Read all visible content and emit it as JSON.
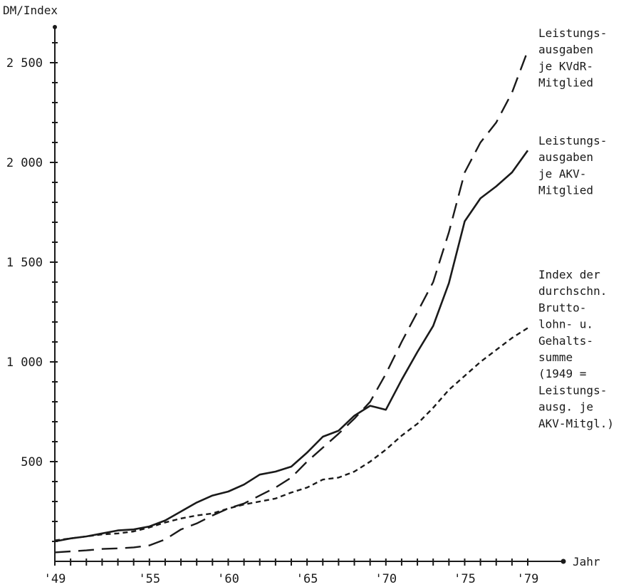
{
  "chart_data": {
    "type": "line",
    "title": "",
    "ylabel": "DM/Index",
    "xlabel": "Jahr",
    "xlim": [
      1949,
      1979
    ],
    "ylim": [
      0,
      2500
    ],
    "x_ticks": [
      {
        "value": 1949,
        "label": "'49"
      },
      {
        "value": 1955,
        "label": "'55"
      },
      {
        "value": 1960,
        "label": "'60"
      },
      {
        "value": 1965,
        "label": "'65"
      },
      {
        "value": 1970,
        "label": "'70"
      },
      {
        "value": 1975,
        "label": "'75"
      },
      {
        "value": 1979,
        "label": "'79"
      }
    ],
    "y_ticks": [
      {
        "value": 500,
        "label": "500"
      },
      {
        "value": 1000,
        "label": "1 000"
      },
      {
        "value": 1500,
        "label": "1 500"
      },
      {
        "value": 2000,
        "label": "2 000"
      },
      {
        "value": 2500,
        "label": "2 500"
      }
    ],
    "y_minor_step": 100,
    "x_tick_step": 1,
    "grid": false,
    "legend": "labels at line ends (right)",
    "series": [
      {
        "name": "Leistungs- ausgaben je KVdR- Mitglied",
        "label_lines": [
          "Leistungs-",
          "ausgaben",
          "je KVdR-",
          "Mitglied"
        ],
        "style": "long-dash",
        "x": [
          1949,
          1950,
          1951,
          1952,
          1953,
          1954,
          1955,
          1956,
          1957,
          1958,
          1959,
          1960,
          1961,
          1962,
          1963,
          1964,
          1965,
          1966,
          1967,
          1968,
          1969,
          1970,
          1971,
          1972,
          1973,
          1974,
          1975,
          1976,
          1977,
          1978,
          1979
        ],
        "y": [
          45,
          50,
          55,
          62,
          65,
          70,
          80,
          110,
          160,
          190,
          230,
          265,
          290,
          330,
          370,
          420,
          500,
          570,
          640,
          715,
          800,
          940,
          1100,
          1250,
          1400,
          1650,
          1950,
          2100,
          2200,
          2350,
          2560
        ]
      },
      {
        "name": "Leistungs- ausgaben je AKV- Mitglied",
        "label_lines": [
          "Leistungs-",
          "ausgaben",
          "je AKV-",
          "Mitglied"
        ],
        "style": "solid",
        "x": [
          1949,
          1950,
          1951,
          1952,
          1953,
          1954,
          1955,
          1956,
          1957,
          1958,
          1959,
          1960,
          1961,
          1962,
          1963,
          1964,
          1965,
          1966,
          1967,
          1968,
          1969,
          1969.5,
          1970,
          1971,
          1972,
          1973,
          1974,
          1975,
          1976,
          1977,
          1978,
          1979
        ],
        "y": [
          100,
          115,
          125,
          140,
          155,
          160,
          175,
          205,
          250,
          295,
          330,
          350,
          385,
          435,
          450,
          475,
          545,
          625,
          655,
          730,
          780,
          770,
          760,
          910,
          1050,
          1180,
          1395,
          1705,
          1820,
          1880,
          1950,
          2060
        ]
      },
      {
        "name": "Index der durchschn. Brutto- lohn- u. Gehalts- summe (1949 = Leistungs- ausg. je AKV-Mitgl.)",
        "label_lines": [
          "Index der",
          "durchschn.",
          "Brutto-",
          "lohn- u.",
          "Gehalts-",
          "summe",
          "(1949 =",
          "Leistungs-",
          "ausg. je",
          "AKV-Mitgl.)"
        ],
        "style": "short-dash",
        "x": [
          1949,
          1950,
          1951,
          1952,
          1953,
          1954,
          1955,
          1956,
          1957,
          1958,
          1959,
          1960,
          1961,
          1962,
          1963,
          1964,
          1965,
          1966,
          1967,
          1968,
          1969,
          1970,
          1971,
          1972,
          1973,
          1974,
          1975,
          1976,
          1977,
          1978,
          1979
        ],
        "y": [
          105,
          115,
          125,
          135,
          140,
          150,
          170,
          195,
          215,
          230,
          240,
          265,
          285,
          300,
          315,
          345,
          370,
          410,
          420,
          450,
          500,
          560,
          630,
          690,
          770,
          860,
          930,
          1000,
          1060,
          1120,
          1170
        ]
      }
    ]
  }
}
